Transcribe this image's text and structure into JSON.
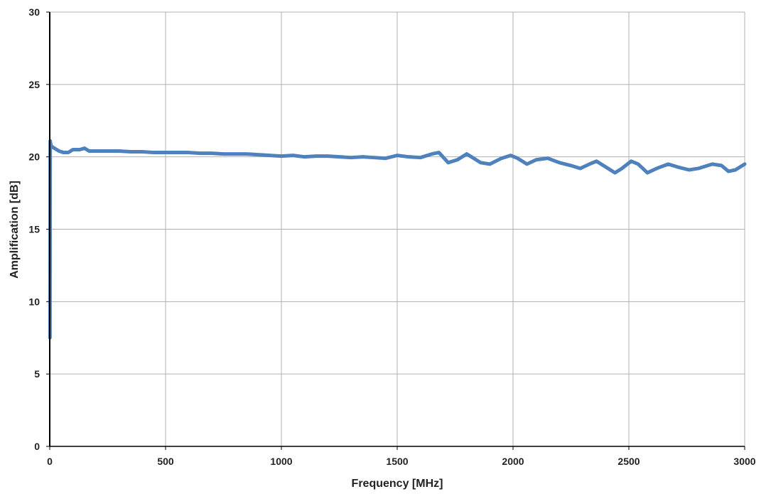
{
  "chart_data": {
    "type": "line",
    "title": "",
    "xlabel": "Frequency [MHz]",
    "ylabel": "Amplification [dB]",
    "xlim": [
      0,
      3000
    ],
    "ylim": [
      0,
      30
    ],
    "xticks": [
      0,
      500,
      1000,
      1500,
      2000,
      2500,
      3000
    ],
    "yticks": [
      0,
      5,
      10,
      15,
      20,
      25,
      30
    ],
    "grid": true,
    "legend": "none",
    "series": [
      {
        "color": "#4f81bd",
        "x": [
          1,
          2,
          5,
          10,
          20,
          40,
          60,
          80,
          100,
          130,
          150,
          170,
          200,
          250,
          300,
          350,
          400,
          450,
          500,
          550,
          600,
          650,
          700,
          750,
          800,
          850,
          900,
          950,
          1000,
          1050,
          1100,
          1150,
          1200,
          1250,
          1300,
          1350,
          1400,
          1450,
          1500,
          1550,
          1600,
          1650,
          1680,
          1720,
          1760,
          1800,
          1820,
          1860,
          1900,
          1950,
          1990,
          2020,
          2060,
          2100,
          2150,
          2200,
          2250,
          2290,
          2330,
          2360,
          2400,
          2440,
          2470,
          2510,
          2540,
          2580,
          2620,
          2670,
          2710,
          2760,
          2800,
          2860,
          2900,
          2930,
          2960,
          3000
        ],
        "y": [
          7.5,
          21.1,
          20.8,
          20.7,
          20.6,
          20.4,
          20.3,
          20.3,
          20.5,
          20.5,
          20.6,
          20.4,
          20.4,
          20.4,
          20.4,
          20.35,
          20.35,
          20.3,
          20.3,
          20.3,
          20.3,
          20.25,
          20.25,
          20.2,
          20.2,
          20.2,
          20.15,
          20.1,
          20.05,
          20.1,
          20.0,
          20.05,
          20.05,
          20.0,
          19.95,
          20.0,
          19.95,
          19.9,
          20.1,
          20.0,
          19.95,
          20.2,
          20.3,
          19.6,
          19.8,
          20.2,
          20.0,
          19.6,
          19.5,
          19.9,
          20.1,
          19.9,
          19.5,
          19.8,
          19.9,
          19.6,
          19.4,
          19.2,
          19.5,
          19.7,
          19.3,
          18.9,
          19.2,
          19.7,
          19.5,
          18.9,
          19.2,
          19.5,
          19.3,
          19.1,
          19.2,
          19.5,
          19.4,
          19.0,
          19.1,
          19.5
        ]
      }
    ]
  }
}
